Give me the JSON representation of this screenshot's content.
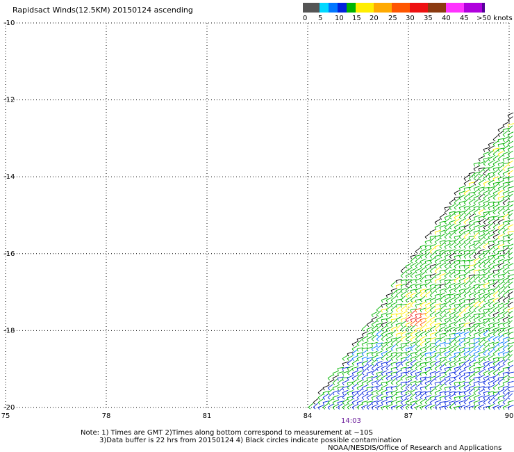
{
  "title": "Rapidsact Winds(12.5KM) 20150124 ascending",
  "legend": {
    "colors": [
      "#555555",
      "#00d8ff",
      "#0077ff",
      "#0022dd",
      "#00b400",
      "#ffee00",
      "#ffaa00",
      "#ff5500",
      "#ee1111",
      "#8b3a10",
      "#ff33ff",
      "#b000dd",
      "#550099"
    ],
    "labels": [
      "0",
      "5",
      "10",
      "15",
      "20",
      "25",
      "30",
      "35",
      "40",
      "45",
      ">50 knots"
    ]
  },
  "time_label": "14:03",
  "notes": {
    "line1": "Note: 1) Times are GMT 2)Times along bottom correspond to measurement at ~10S",
    "line2": "3)Data buffer is 22 hrs from 20150124 4) Black circles indicate possible contamination",
    "line3": "NOAA/NESDIS/Office of Research and Applications"
  },
  "chart_data": {
    "type": "scatter",
    "title": "Rapidsact Winds(12.5KM) 20150124 ascending",
    "x_ticks": [
      "75",
      "78",
      "81",
      "84",
      "87",
      "90"
    ],
    "y_ticks": [
      "-10",
      "-12",
      "-14",
      "-16",
      "-18",
      "-20"
    ],
    "xlim": [
      75,
      90
    ],
    "ylim": [
      -20,
      -10
    ],
    "grid": true,
    "swath": {
      "description_points": [
        [
          84,
          -20
        ],
        [
          90,
          -12.3
        ],
        [
          90,
          -20
        ]
      ],
      "dominant_speed_knots": "15-20",
      "high_wind_spot": {
        "lon": 87.2,
        "lat": -17.7,
        "speed_knots": "30-35"
      }
    }
  }
}
